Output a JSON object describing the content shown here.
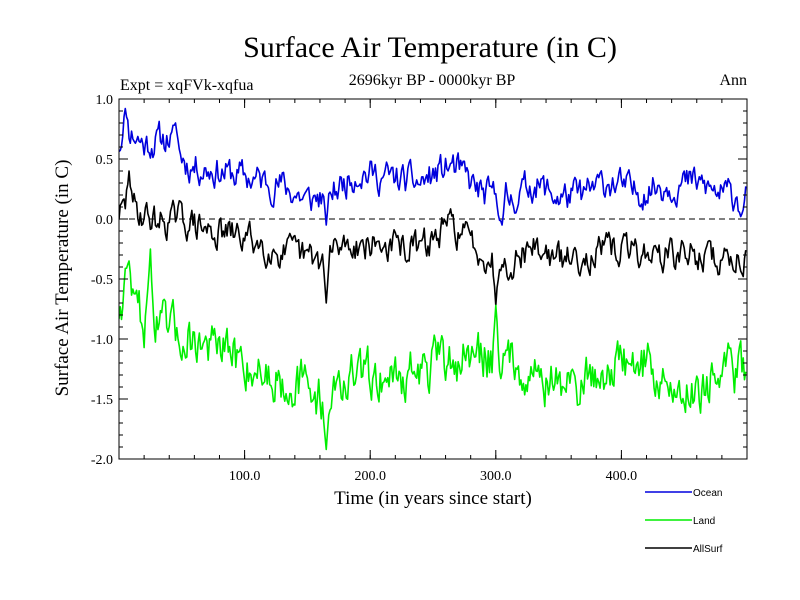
{
  "chart_data": {
    "type": "line",
    "title": "Surface Air Temperature (in C)",
    "subtitle": "2696kyr BP - 0000kyr BP",
    "left_label": "Expt = xqFVk-xqfua",
    "right_label": "Ann",
    "xlabel": "Time (in years since start)",
    "ylabel": "Surface Air Temperature (in C)",
    "xlim": [
      0,
      500
    ],
    "ylim": [
      -2.0,
      1.0
    ],
    "xticks": [
      100,
      200,
      300,
      400
    ],
    "xtick_labels": [
      "100.0",
      "200.0",
      "300.0",
      "400.0"
    ],
    "yticks": [
      1.0,
      0.5,
      0.0,
      -0.5,
      -1.0,
      -1.5,
      -2.0
    ],
    "ytick_labels": [
      "1.0",
      "0.5",
      "0.0",
      "-0.5",
      "-1.0",
      "-1.5",
      "-2.0"
    ],
    "reference_line": 0.0,
    "legend_position": "bottom-right",
    "series": [
      {
        "name": "Ocean",
        "color": "#0000dd",
        "seed": 11,
        "anchors": [
          [
            0,
            0.62
          ],
          [
            5,
            0.78
          ],
          [
            20,
            0.62
          ],
          [
            40,
            0.68
          ],
          [
            55,
            0.45
          ],
          [
            70,
            0.42
          ],
          [
            100,
            0.35
          ],
          [
            130,
            0.28
          ],
          [
            150,
            0.15
          ],
          [
            170,
            0.22
          ],
          [
            190,
            0.4
          ],
          [
            210,
            0.35
          ],
          [
            240,
            0.3
          ],
          [
            265,
            0.45
          ],
          [
            290,
            0.2
          ],
          [
            310,
            0.15
          ],
          [
            330,
            0.3
          ],
          [
            350,
            0.18
          ],
          [
            370,
            0.2
          ],
          [
            390,
            0.32
          ],
          [
            410,
            0.22
          ],
          [
            430,
            0.28
          ],
          [
            460,
            0.3
          ],
          [
            480,
            0.2
          ],
          [
            499,
            0.2
          ]
        ],
        "noise": 0.11,
        "extremes": [
          [
            5,
            0.92
          ],
          [
            45,
            0.8
          ],
          [
            165,
            -0.05
          ],
          [
            495,
            0.02
          ],
          [
            305,
            -0.05
          ]
        ]
      },
      {
        "name": "AllSurf",
        "color": "#000000",
        "seed": 29,
        "anchors": [
          [
            0,
            0.05
          ],
          [
            10,
            0.1
          ],
          [
            30,
            -0.02
          ],
          [
            50,
            0.0
          ],
          [
            70,
            -0.1
          ],
          [
            100,
            -0.15
          ],
          [
            130,
            -0.28
          ],
          [
            160,
            -0.35
          ],
          [
            180,
            -0.2
          ],
          [
            210,
            -0.22
          ],
          [
            240,
            -0.25
          ],
          [
            265,
            -0.05
          ],
          [
            290,
            -0.28
          ],
          [
            310,
            -0.35
          ],
          [
            330,
            -0.22
          ],
          [
            350,
            -0.35
          ],
          [
            370,
            -0.3
          ],
          [
            400,
            -0.25
          ],
          [
            430,
            -0.3
          ],
          [
            460,
            -0.3
          ],
          [
            480,
            -0.35
          ],
          [
            499,
            -0.3
          ]
        ],
        "noise": 0.11,
        "extremes": [
          [
            8,
            0.4
          ],
          [
            165,
            -0.7
          ],
          [
            300,
            -0.72
          ]
        ]
      },
      {
        "name": "Land",
        "color": "#00ee00",
        "seed": 47,
        "anchors": [
          [
            0,
            -0.75
          ],
          [
            5,
            -0.5
          ],
          [
            20,
            -0.85
          ],
          [
            40,
            -0.95
          ],
          [
            60,
            -1.0
          ],
          [
            80,
            -1.1
          ],
          [
            100,
            -1.2
          ],
          [
            120,
            -1.3
          ],
          [
            140,
            -1.35
          ],
          [
            160,
            -1.5
          ],
          [
            180,
            -1.35
          ],
          [
            200,
            -1.3
          ],
          [
            230,
            -1.3
          ],
          [
            260,
            -1.2
          ],
          [
            280,
            -1.15
          ],
          [
            300,
            -1.15
          ],
          [
            320,
            -1.2
          ],
          [
            340,
            -1.35
          ],
          [
            360,
            -1.4
          ],
          [
            380,
            -1.3
          ],
          [
            400,
            -1.2
          ],
          [
            420,
            -1.2
          ],
          [
            440,
            -1.45
          ],
          [
            460,
            -1.4
          ],
          [
            480,
            -1.3
          ],
          [
            499,
            -1.25
          ]
        ],
        "noise": 0.17,
        "extremes": [
          [
            8,
            -0.35
          ],
          [
            25,
            -0.25
          ],
          [
            165,
            -1.92
          ],
          [
            300,
            -0.72
          ]
        ]
      }
    ]
  }
}
